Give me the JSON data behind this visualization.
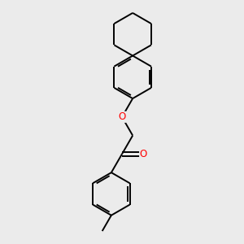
{
  "bg_color": "#ebebeb",
  "bond_color": "#000000",
  "oxygen_color": "#ff0000",
  "lw": 1.4,
  "figsize": [
    3.0,
    3.0
  ],
  "dpi": 100
}
